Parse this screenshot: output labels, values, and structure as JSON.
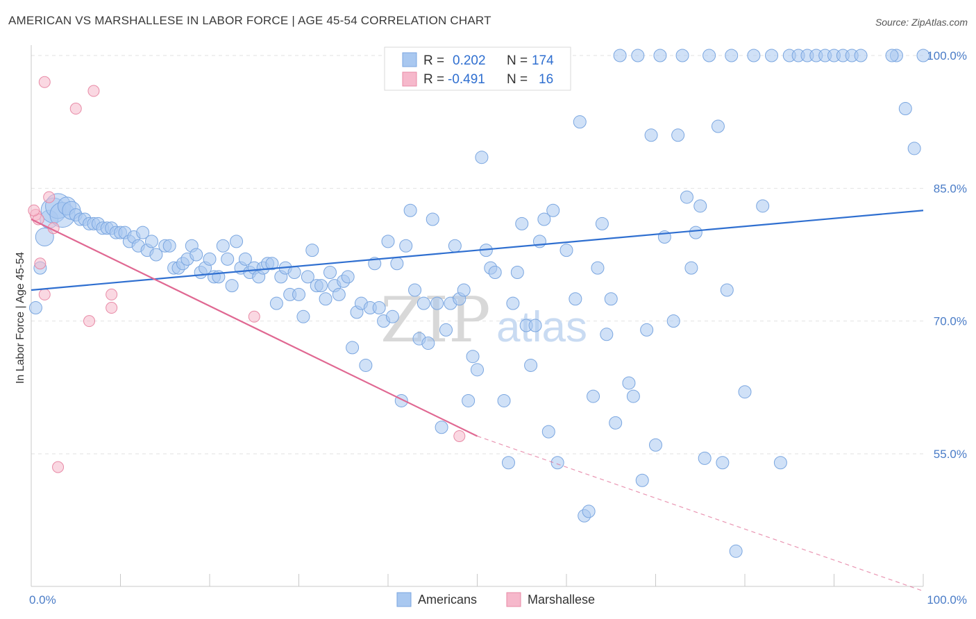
{
  "header": {
    "title": "AMERICAN VS MARSHALLESE IN LABOR FORCE | AGE 45-54 CORRELATION CHART",
    "source": "Source: ZipAtlas.com"
  },
  "chart_data": {
    "type": "scatter",
    "title": "AMERICAN VS MARSHALLESE IN LABOR FORCE | AGE 45-54 CORRELATION CHART",
    "xlabel": "",
    "ylabel": "In Labor Force | Age 45-54",
    "xlim": [
      0,
      100
    ],
    "ylim": [
      40,
      102
    ],
    "x_tick_labels": [
      "0.0%",
      "100.0%"
    ],
    "y_ticks": [
      55,
      70,
      85,
      100
    ],
    "y_tick_labels": [
      "55.0%",
      "70.0%",
      "85.0%",
      "100.0%"
    ],
    "grid": true,
    "legend_position": "top-center",
    "watermark": {
      "zip": "ZIP",
      "atlas": "atlas"
    },
    "stats_legend": [
      {
        "r_label": "R =",
        "r_value": "0.202",
        "n_label": "N =",
        "n_value": "174",
        "color": "#a9c8f0"
      },
      {
        "r_label": "R =",
        "r_value": "-0.491",
        "n_label": "N =",
        "n_value": "16",
        "color": "#f6b8cb"
      }
    ],
    "series": [
      {
        "name": "Americans",
        "color": "#a9c8f0",
        "stroke": "#7aa6e0",
        "trend_color": "#2f6fd0",
        "trend": [
          [
            0,
            73.5
          ],
          [
            100,
            82.5
          ]
        ],
        "points": [
          [
            0.5,
            71.5
          ],
          [
            1.0,
            76.0
          ],
          [
            1.5,
            79.5
          ],
          [
            2.0,
            81.5
          ],
          [
            2.5,
            82.5
          ],
          [
            3.0,
            83.0
          ],
          [
            3.5,
            82.0
          ],
          [
            4.0,
            83.0
          ],
          [
            4.5,
            82.5
          ],
          [
            5.0,
            82.0
          ],
          [
            5.5,
            81.5
          ],
          [
            6.0,
            81.5
          ],
          [
            6.5,
            81.0
          ],
          [
            7.0,
            81.0
          ],
          [
            7.5,
            81.0
          ],
          [
            8.0,
            80.5
          ],
          [
            8.5,
            80.5
          ],
          [
            9.0,
            80.5
          ],
          [
            9.5,
            80.0
          ],
          [
            10.0,
            80.0
          ],
          [
            10.5,
            80.0
          ],
          [
            11.0,
            79.0
          ],
          [
            11.5,
            79.5
          ],
          [
            12.0,
            78.5
          ],
          [
            12.5,
            80.0
          ],
          [
            13.0,
            78.0
          ],
          [
            13.5,
            79.0
          ],
          [
            14.0,
            77.5
          ],
          [
            15.0,
            78.5
          ],
          [
            15.5,
            78.5
          ],
          [
            16.0,
            76.0
          ],
          [
            16.5,
            76.0
          ],
          [
            17.0,
            76.5
          ],
          [
            17.5,
            77.0
          ],
          [
            18.0,
            78.5
          ],
          [
            18.5,
            77.5
          ],
          [
            19.0,
            75.5
          ],
          [
            19.5,
            76.0
          ],
          [
            20.0,
            77.0
          ],
          [
            20.5,
            75.0
          ],
          [
            21.0,
            75.0
          ],
          [
            21.5,
            78.5
          ],
          [
            22.0,
            77.0
          ],
          [
            22.5,
            74.0
          ],
          [
            23.0,
            79.0
          ],
          [
            23.5,
            76.0
          ],
          [
            24.0,
            77.0
          ],
          [
            24.5,
            75.5
          ],
          [
            25.0,
            76.0
          ],
          [
            25.5,
            75.0
          ],
          [
            26.0,
            76.0
          ],
          [
            26.5,
            76.5
          ],
          [
            27.0,
            76.5
          ],
          [
            27.5,
            72.0
          ],
          [
            28.0,
            75.0
          ],
          [
            28.5,
            76.0
          ],
          [
            29.0,
            73.0
          ],
          [
            29.5,
            75.5
          ],
          [
            30.0,
            73.0
          ],
          [
            30.5,
            70.5
          ],
          [
            31.0,
            75.0
          ],
          [
            31.5,
            78.0
          ],
          [
            32.0,
            74.0
          ],
          [
            32.5,
            74.0
          ],
          [
            33.0,
            72.5
          ],
          [
            33.5,
            75.5
          ],
          [
            34.0,
            74.0
          ],
          [
            34.5,
            73.0
          ],
          [
            35.0,
            74.5
          ],
          [
            35.5,
            75.0
          ],
          [
            36.0,
            67.0
          ],
          [
            36.5,
            71.0
          ],
          [
            37.0,
            72.0
          ],
          [
            37.5,
            65.0
          ],
          [
            38.0,
            71.5
          ],
          [
            38.5,
            76.5
          ],
          [
            39.0,
            71.5
          ],
          [
            39.5,
            70.0
          ],
          [
            40.0,
            79.0
          ],
          [
            40.5,
            70.5
          ],
          [
            41.0,
            76.5
          ],
          [
            41.5,
            61.0
          ],
          [
            42.0,
            78.5
          ],
          [
            42.5,
            82.5
          ],
          [
            43.0,
            73.5
          ],
          [
            43.5,
            68.0
          ],
          [
            44.0,
            72.0
          ],
          [
            44.5,
            67.5
          ],
          [
            45.0,
            81.5
          ],
          [
            45.5,
            72.0
          ],
          [
            46.0,
            58.0
          ],
          [
            46.5,
            69.0
          ],
          [
            47.0,
            72.0
          ],
          [
            47.5,
            78.5
          ],
          [
            48.0,
            72.5
          ],
          [
            48.5,
            73.5
          ],
          [
            49.0,
            61.0
          ],
          [
            49.5,
            66.0
          ],
          [
            50.0,
            64.5
          ],
          [
            50.5,
            88.5
          ],
          [
            51.0,
            78.0
          ],
          [
            51.5,
            76.0
          ],
          [
            52.0,
            75.5
          ],
          [
            53.0,
            61.0
          ],
          [
            53.5,
            54.0
          ],
          [
            54.0,
            72.0
          ],
          [
            54.5,
            75.5
          ],
          [
            55.0,
            81.0
          ],
          [
            55.5,
            69.5
          ],
          [
            56.0,
            65.0
          ],
          [
            56.5,
            69.5
          ],
          [
            57.0,
            79.0
          ],
          [
            57.5,
            81.5
          ],
          [
            58.0,
            57.5
          ],
          [
            58.5,
            82.5
          ],
          [
            59.0,
            54.0
          ],
          [
            60.0,
            78.0
          ],
          [
            61.0,
            72.5
          ],
          [
            61.5,
            92.5
          ],
          [
            62.0,
            48.0
          ],
          [
            62.5,
            48.5
          ],
          [
            63.0,
            61.5
          ],
          [
            63.5,
            76.0
          ],
          [
            64.0,
            81.0
          ],
          [
            64.5,
            68.5
          ],
          [
            65.0,
            72.5
          ],
          [
            65.5,
            58.5
          ],
          [
            66.0,
            100.0
          ],
          [
            67.0,
            63.0
          ],
          [
            67.5,
            61.5
          ],
          [
            68.0,
            100.0
          ],
          [
            68.5,
            52.0
          ],
          [
            69.0,
            69.0
          ],
          [
            69.5,
            91.0
          ],
          [
            70.0,
            56.0
          ],
          [
            70.5,
            100.0
          ],
          [
            71.0,
            79.5
          ],
          [
            72.0,
            70.0
          ],
          [
            72.5,
            91.0
          ],
          [
            73.0,
            100.0
          ],
          [
            73.5,
            84.0
          ],
          [
            74.0,
            76.0
          ],
          [
            74.5,
            80.0
          ],
          [
            75.0,
            83.0
          ],
          [
            75.5,
            54.5
          ],
          [
            76.0,
            100.0
          ],
          [
            77.0,
            92.0
          ],
          [
            77.5,
            54.0
          ],
          [
            78.0,
            73.5
          ],
          [
            78.5,
            100.0
          ],
          [
            79.0,
            44.0
          ],
          [
            80.0,
            62.0
          ],
          [
            81.0,
            100.0
          ],
          [
            82.0,
            83.0
          ],
          [
            83.0,
            100.0
          ],
          [
            84.0,
            54.0
          ],
          [
            85.0,
            100.0
          ],
          [
            86.0,
            100.0
          ],
          [
            87.0,
            100.0
          ],
          [
            88.0,
            100.0
          ],
          [
            89.0,
            100.0
          ],
          [
            90.0,
            100.0
          ],
          [
            91.0,
            100.0
          ],
          [
            92.0,
            100.0
          ],
          [
            93.0,
            100.0
          ],
          [
            97.0,
            100.0
          ],
          [
            98.0,
            94.0
          ],
          [
            99.0,
            89.5
          ],
          [
            100.0,
            100.0
          ],
          [
            96.5,
            100.0
          ]
        ]
      },
      {
        "name": "Marshallese",
        "color": "#f6b8cb",
        "stroke": "#e88aa6",
        "trend_color": "#e06892",
        "trend": [
          [
            0,
            81.5
          ],
          [
            50,
            57.0
          ]
        ],
        "trend_dashed": [
          [
            50,
            57.0
          ],
          [
            100,
            39.5
          ]
        ],
        "points": [
          [
            0.5,
            82.0
          ],
          [
            0.8,
            81.5
          ],
          [
            1.0,
            76.5
          ],
          [
            1.5,
            73.0
          ],
          [
            1.5,
            97.0
          ],
          [
            2.0,
            84.0
          ],
          [
            2.5,
            80.5
          ],
          [
            3.0,
            53.5
          ],
          [
            5.0,
            94.0
          ],
          [
            6.5,
            70.0
          ],
          [
            7.0,
            96.0
          ],
          [
            9.0,
            71.5
          ],
          [
            9.0,
            73.0
          ],
          [
            25.0,
            70.5
          ],
          [
            48.0,
            57.0
          ],
          [
            0.3,
            82.5
          ]
        ]
      }
    ]
  },
  "bottom_legend": [
    {
      "label": "Americans",
      "color": "#a9c8f0"
    },
    {
      "label": "Marshallese",
      "color": "#f6b8cb"
    }
  ]
}
